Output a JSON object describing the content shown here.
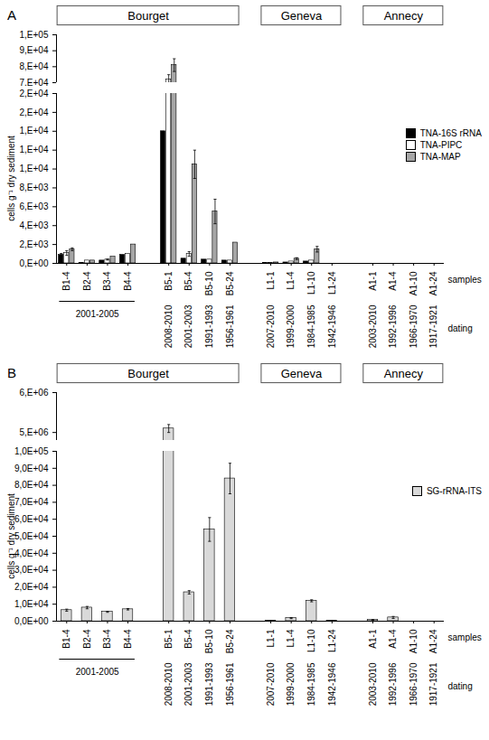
{
  "chart_data": [
    {
      "type": "bar",
      "title": "A",
      "ylabel": "cells g⁻¹ dry sediment",
      "xlabel": "samples",
      "dating_label": "dating",
      "legend": "right",
      "categories": [
        "B1-4",
        "B2-4",
        "B3-4",
        "B4-4",
        null,
        "B5-1",
        "B5-4",
        "B5-10",
        "B5-24",
        null,
        "L1-1",
        "L1-4",
        "L1-10",
        "L1-24",
        null,
        "A1-1",
        "A1-4",
        "A1-10",
        "A1-24"
      ],
      "groups": [
        {
          "name": "Bourget",
          "samples": [
            "B1-4",
            "B2-4",
            "B3-4",
            "B4-4",
            "B5-1",
            "B5-4",
            "B5-10",
            "B5-24"
          ]
        },
        {
          "name": "Geneva",
          "samples": [
            "L1-1",
            "L1-4",
            "L1-10",
            "L1-24"
          ]
        },
        {
          "name": "Annecy",
          "samples": [
            "A1-1",
            "A1-4",
            "A1-10",
            "A1-24"
          ]
        }
      ],
      "dating": [
        {
          "label": "2001-2005",
          "samples": [
            "B1-4",
            "B2-4",
            "B3-4",
            "B4-4"
          ]
        },
        {
          "label": "2008-2010",
          "samples": [
            "B5-1"
          ]
        },
        {
          "label": "2001-2003",
          "samples": [
            "B5-4"
          ]
        },
        {
          "label": "1991-1993",
          "samples": [
            "B5-10"
          ]
        },
        {
          "label": "1956-1961",
          "samples": [
            "B5-24"
          ]
        },
        {
          "label": "2007-2010",
          "samples": [
            "L1-1"
          ]
        },
        {
          "label": "1999-2000",
          "samples": [
            "L1-4"
          ]
        },
        {
          "label": "1984-1985",
          "samples": [
            "L1-10"
          ]
        },
        {
          "label": "1942-1946",
          "samples": [
            "L1-24"
          ]
        },
        {
          "label": "2003-2010",
          "samples": [
            "A1-1"
          ]
        },
        {
          "label": "1992-1996",
          "samples": [
            "A1-4"
          ]
        },
        {
          "label": "1966-1970",
          "samples": [
            "A1-10"
          ]
        },
        {
          "label": "1917-1921",
          "samples": [
            "A1-24"
          ]
        }
      ],
      "y_segments": [
        {
          "ylim": [
            70000,
            100000
          ],
          "yticks": [
            {
              "value": 70000,
              "label": "7,E+04"
            },
            {
              "value": 80000,
              "label": "8,E+04"
            },
            {
              "value": 90000,
              "label": "9,E+04"
            },
            {
              "value": 100000,
              "label": "1,E+05"
            }
          ]
        },
        {
          "ylim": [
            0,
            18000
          ],
          "yticks": [
            {
              "value": 0,
              "label": "0,E+00"
            },
            {
              "value": 2000,
              "label": "2,E+03"
            },
            {
              "value": 4000,
              "label": "4,E+03"
            },
            {
              "value": 6000,
              "label": "6,E+03"
            },
            {
              "value": 8000,
              "label": "8,E+03"
            },
            {
              "value": 10000,
              "label": "1,E+04"
            },
            {
              "value": 12000,
              "label": "1,E+04"
            },
            {
              "value": 14000,
              "label": "1,E+04"
            },
            {
              "value": 16000,
              "label": "2,E+04"
            },
            {
              "value": 18000,
              "label": "2,E+04"
            }
          ]
        }
      ],
      "series": [
        {
          "name": "TNA-16S rRNA",
          "color": "#000000",
          "values": [
            900,
            50,
            300,
            900,
            null,
            14000,
            500,
            400,
            300,
            null,
            50,
            100,
            200,
            0,
            null,
            0,
            0,
            0,
            0
          ],
          "errors": [
            150,
            null,
            null,
            null,
            null,
            null,
            null,
            null,
            null,
            null,
            null,
            null,
            null,
            null,
            null,
            null,
            null,
            null,
            null
          ]
        },
        {
          "name": "TNA-PIPC",
          "color": "#ffffff",
          "values": [
            1100,
            300,
            400,
            1000,
            null,
            72000,
            1000,
            400,
            300,
            null,
            50,
            200,
            300,
            0,
            null,
            0,
            0,
            0,
            0
          ],
          "errors": [
            250,
            null,
            50,
            null,
            null,
            3000,
            250,
            null,
            null,
            null,
            null,
            null,
            null,
            null,
            null,
            null,
            null,
            null,
            null
          ]
        },
        {
          "name": "TNA-MAP",
          "color": "#a6a6a6",
          "values": [
            1500,
            300,
            700,
            2000,
            null,
            81000,
            10500,
            5500,
            2200,
            null,
            100,
            500,
            1500,
            0,
            null,
            0,
            0,
            0,
            0
          ],
          "errors": [
            150,
            null,
            null,
            null,
            null,
            4000,
            1500,
            1300,
            null,
            null,
            null,
            100,
            300,
            null,
            null,
            null,
            null,
            null,
            null
          ]
        }
      ]
    },
    {
      "type": "bar",
      "title": "B",
      "ylabel": "cells g⁻¹ dry sediment",
      "xlabel": "samples",
      "dating_label": "dating",
      "legend": "right",
      "categories": [
        "B1-4",
        "B2-4",
        "B3-4",
        "B4-4",
        null,
        "B5-1",
        "B5-4",
        "B5-10",
        "B5-24",
        null,
        "L1-1",
        "L1-4",
        "L1-10",
        "L1-24",
        null,
        "A1-1",
        "A1-4",
        "A1-10",
        "A1-24"
      ],
      "groups": [
        {
          "name": "Bourget",
          "samples": [
            "B1-4",
            "B2-4",
            "B3-4",
            "B4-4",
            "B5-1",
            "B5-4",
            "B5-10",
            "B5-24"
          ]
        },
        {
          "name": "Geneva",
          "samples": [
            "L1-1",
            "L1-4",
            "L1-10",
            "L1-24"
          ]
        },
        {
          "name": "Annecy",
          "samples": [
            "A1-1",
            "A1-4",
            "A1-10",
            "A1-24"
          ]
        }
      ],
      "dating": [
        {
          "label": "2001-2005",
          "samples": [
            "B1-4",
            "B2-4",
            "B3-4",
            "B4-4"
          ]
        },
        {
          "label": "2008-2010",
          "samples": [
            "B5-1"
          ]
        },
        {
          "label": "2001-2003",
          "samples": [
            "B5-4"
          ]
        },
        {
          "label": "1991-1993",
          "samples": [
            "B5-10"
          ]
        },
        {
          "label": "1956-1961",
          "samples": [
            "B5-24"
          ]
        },
        {
          "label": "2007-2010",
          "samples": [
            "L1-1"
          ]
        },
        {
          "label": "1999-2000",
          "samples": [
            "L1-4"
          ]
        },
        {
          "label": "1984-1985",
          "samples": [
            "L1-10"
          ]
        },
        {
          "label": "1942-1946",
          "samples": [
            "L1-24"
          ]
        },
        {
          "label": "2003-2010",
          "samples": [
            "A1-1"
          ]
        },
        {
          "label": "1992-1996",
          "samples": [
            "A1-4"
          ]
        },
        {
          "label": "1966-1970",
          "samples": [
            "A1-10"
          ]
        },
        {
          "label": "1917-1921",
          "samples": [
            "A1-24"
          ]
        }
      ],
      "y_segments": [
        {
          "ylim": [
            4800000,
            6000000
          ],
          "yticks": [
            {
              "value": 5000000,
              "label": "5,E+06"
            },
            {
              "value": 6000000,
              "label": "6,E+06"
            }
          ]
        },
        {
          "ylim": [
            0,
            100000
          ],
          "yticks": [
            {
              "value": 0,
              "label": "0,0E+00"
            },
            {
              "value": 10000,
              "label": "1,0E+04"
            },
            {
              "value": 20000,
              "label": "2,0E+04"
            },
            {
              "value": 30000,
              "label": "3,0E+04"
            },
            {
              "value": 40000,
              "label": "4,0E+04"
            },
            {
              "value": 50000,
              "label": "5,0E+04"
            },
            {
              "value": 60000,
              "label": "6,0E+04"
            },
            {
              "value": 70000,
              "label": "7,0E+04"
            },
            {
              "value": 80000,
              "label": "8,0E+04"
            },
            {
              "value": 90000,
              "label": "9,0E+04"
            },
            {
              "value": 100000,
              "label": "1,0E+05"
            }
          ]
        }
      ],
      "series": [
        {
          "name": "SG-rRNA-ITS",
          "color": "#d9d9d9",
          "values": [
            6500,
            8000,
            5500,
            7000,
            null,
            5100000,
            17000,
            54000,
            84000,
            null,
            300,
            1800,
            12000,
            200,
            null,
            800,
            2200,
            0,
            0
          ],
          "errors": [
            600,
            700,
            300,
            400,
            null,
            100000,
            1000,
            7000,
            9000,
            null,
            null,
            300,
            600,
            null,
            null,
            200,
            600,
            null,
            null
          ]
        }
      ]
    }
  ]
}
